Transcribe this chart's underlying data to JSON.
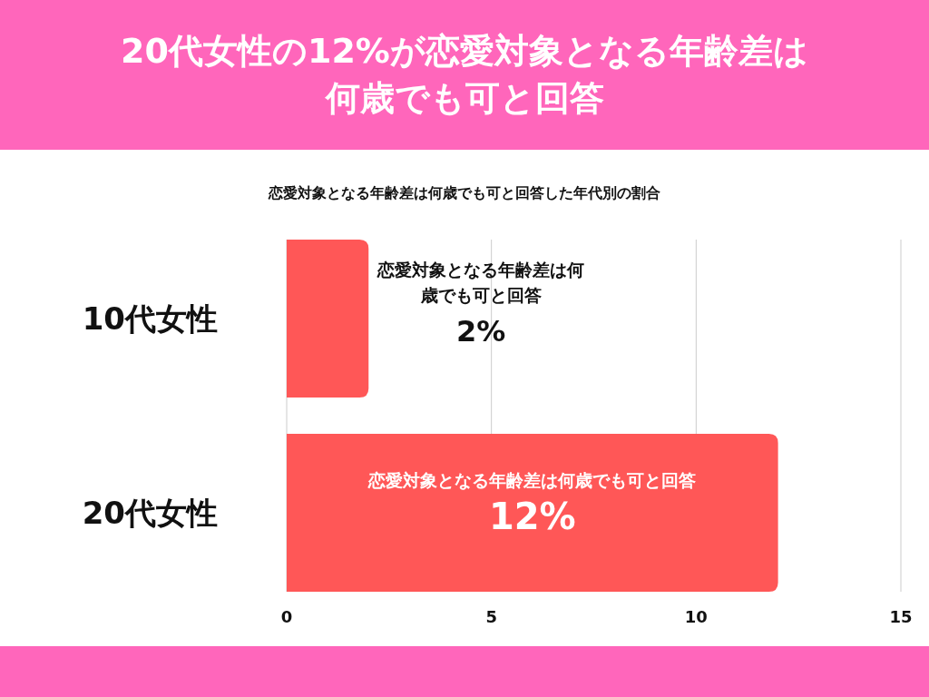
{
  "chart_data": {
    "type": "bar",
    "orientation": "horizontal",
    "title": "20代女性の12%が恋愛対象となる年齢差は何歳でも可と回答",
    "subtitle": "恋愛対象となる年齢差は何歳でも可と回答した年代別の割合",
    "categories": [
      "10代女性",
      "20代女性"
    ],
    "series": [
      {
        "name": "恋愛対象となる年齢差は何歳でも可と回答",
        "color": "#ff5757",
        "values": [
          2,
          12
        ],
        "value_labels": [
          "2%",
          "12%"
        ]
      }
    ],
    "xlim": [
      0,
      15
    ],
    "xticks": [
      0,
      5,
      10,
      15
    ],
    "grid": "x"
  }
}
